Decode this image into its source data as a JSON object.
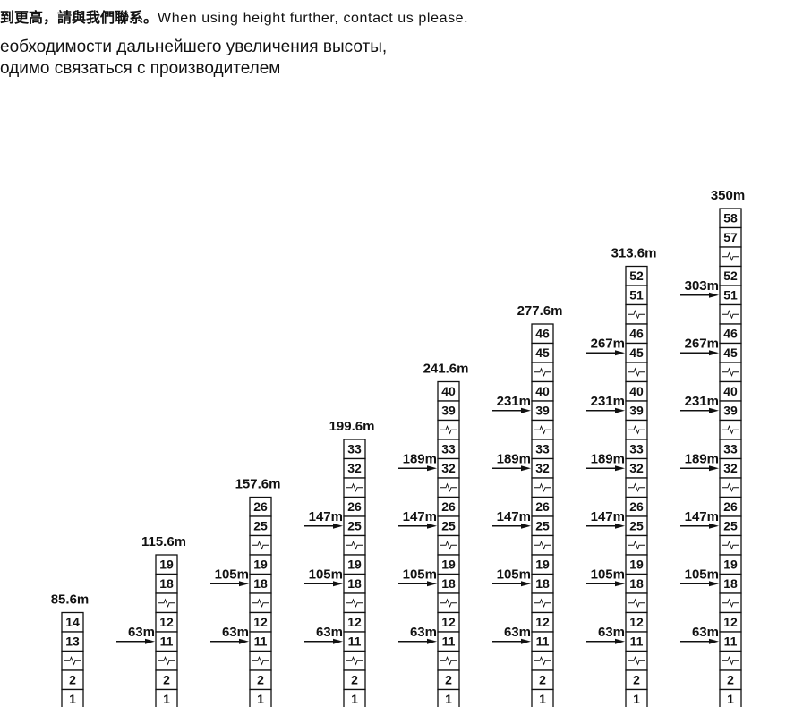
{
  "header": {
    "line1_cn": "到更高，請與我們聯系",
    "line1_sep": "。",
    "line1_en": "When using height further, contact us please.",
    "line2_ru": "еобходимости дальнейшего увеличения высоты,",
    "line3_ru": "одимо связаться с производителем"
  },
  "masts": [
    {
      "height_label": "85.6m",
      "sections": [
        "14",
        "13",
        "~",
        "2",
        "1"
      ],
      "arrows": []
    },
    {
      "height_label": "115.6m",
      "sections": [
        "19",
        "18",
        "~",
        "12",
        "11",
        "~",
        "2",
        "1"
      ],
      "arrows": [
        {
          "label": "63m",
          "at": "11"
        }
      ]
    },
    {
      "height_label": "157.6m",
      "sections": [
        "26",
        "25",
        "~",
        "19",
        "18",
        "~",
        "12",
        "11",
        "~",
        "2",
        "1"
      ],
      "arrows": [
        {
          "label": "105m",
          "at": "18"
        },
        {
          "label": "63m",
          "at": "11"
        }
      ]
    },
    {
      "height_label": "199.6m",
      "sections": [
        "33",
        "32",
        "~",
        "26",
        "25",
        "~",
        "19",
        "18",
        "~",
        "12",
        "11",
        "~",
        "2",
        "1"
      ],
      "arrows": [
        {
          "label": "147m",
          "at": "25"
        },
        {
          "label": "105m",
          "at": "18"
        },
        {
          "label": "63m",
          "at": "11"
        }
      ]
    },
    {
      "height_label": "241.6m",
      "sections": [
        "40",
        "39",
        "~",
        "33",
        "32",
        "~",
        "26",
        "25",
        "~",
        "19",
        "18",
        "~",
        "12",
        "11",
        "~",
        "2",
        "1"
      ],
      "arrows": [
        {
          "label": "189m",
          "at": "32"
        },
        {
          "label": "147m",
          "at": "25"
        },
        {
          "label": "105m",
          "at": "18"
        },
        {
          "label": "63m",
          "at": "11"
        }
      ]
    },
    {
      "height_label": "277.6m",
      "sections": [
        "46",
        "45",
        "~",
        "40",
        "39",
        "~",
        "33",
        "32",
        "~",
        "26",
        "25",
        "~",
        "19",
        "18",
        "~",
        "12",
        "11",
        "~",
        "2",
        "1"
      ],
      "arrows": [
        {
          "label": "231m",
          "at": "39"
        },
        {
          "label": "189m",
          "at": "32"
        },
        {
          "label": "147m",
          "at": "25"
        },
        {
          "label": "105m",
          "at": "18"
        },
        {
          "label": "63m",
          "at": "11"
        }
      ]
    },
    {
      "height_label": "313.6m",
      "sections": [
        "52",
        "51",
        "~",
        "46",
        "45",
        "~",
        "40",
        "39",
        "~",
        "33",
        "32",
        "~",
        "26",
        "25",
        "~",
        "19",
        "18",
        "~",
        "12",
        "11",
        "~",
        "2",
        "1"
      ],
      "arrows": [
        {
          "label": "267m",
          "at": "45"
        },
        {
          "label": "231m",
          "at": "39"
        },
        {
          "label": "189m",
          "at": "32"
        },
        {
          "label": "147m",
          "at": "25"
        },
        {
          "label": "105m",
          "at": "18"
        },
        {
          "label": "63m",
          "at": "11"
        }
      ]
    },
    {
      "height_label": "350m",
      "sections": [
        "58",
        "57",
        "~",
        "52",
        "51",
        "~",
        "46",
        "45",
        "~",
        "40",
        "39",
        "~",
        "33",
        "32",
        "~",
        "26",
        "25",
        "~",
        "19",
        "18",
        "~",
        "12",
        "11",
        "~",
        "2",
        "1"
      ],
      "arrows": [
        {
          "label": "303m",
          "at": "51"
        },
        {
          "label": "267m",
          "at": "45"
        },
        {
          "label": "231m",
          "at": "39"
        },
        {
          "label": "189m",
          "at": "32"
        },
        {
          "label": "147m",
          "at": "25"
        },
        {
          "label": "105m",
          "at": "18"
        },
        {
          "label": "63m",
          "at": "11"
        }
      ]
    }
  ]
}
